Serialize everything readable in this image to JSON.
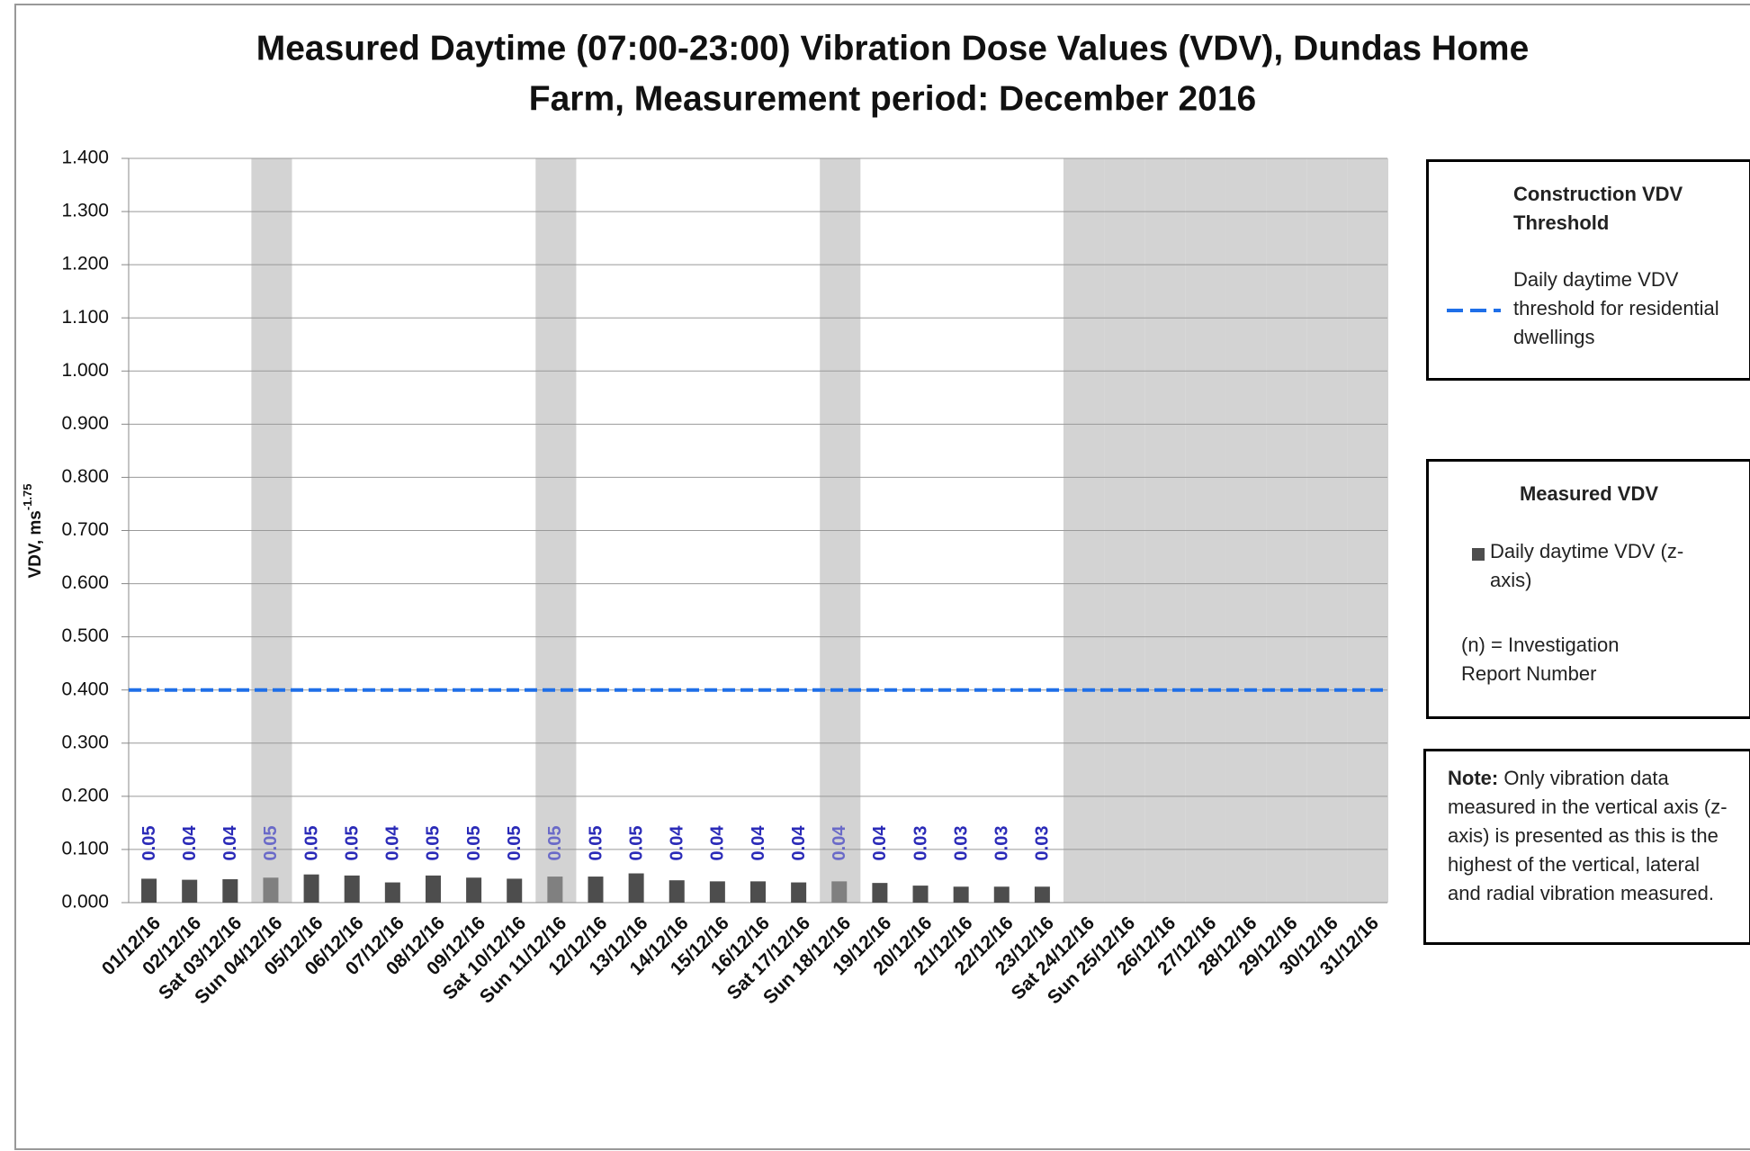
{
  "chart_data": {
    "type": "bar",
    "title_line1": "Measured Daytime (07:00-23:00) Vibration Dose Values (VDV), Dundas Home",
    "title_line2": "Farm, Measurement period: December 2016",
    "y_label": "VDV, ms",
    "y_label_sup": "-1.75",
    "categories": [
      "01/12/16",
      "02/12/16",
      "Sat 03/12/16",
      "Sun 04/12/16",
      "05/12/16",
      "06/12/16",
      "07/12/16",
      "08/12/16",
      "09/12/16",
      "Sat 10/12/16",
      "Sun 11/12/16",
      "12/12/16",
      "13/12/16",
      "14/12/16",
      "15/12/16",
      "16/12/16",
      "Sat 17/12/16",
      "Sun 18/12/16",
      "19/12/16",
      "20/12/16",
      "21/12/16",
      "22/12/16",
      "23/12/16",
      "Sat 24/12/16",
      "Sun 25/12/16",
      "26/12/16",
      "27/12/16",
      "28/12/16",
      "29/12/16",
      "30/12/16",
      "31/12/16"
    ],
    "series": [
      {
        "name": "Daily daytime VDV (z-axis)",
        "type": "bar",
        "color": "#4d4d4d",
        "label_color": "#2b2bb8",
        "values": [
          0.045,
          0.043,
          0.044,
          0.047,
          0.053,
          0.051,
          0.038,
          0.051,
          0.047,
          0.045,
          0.049,
          0.049,
          0.055,
          0.042,
          0.04,
          0.04,
          0.038,
          0.04,
          0.037,
          0.032,
          0.03,
          0.03,
          0.03,
          null,
          null,
          null,
          null,
          null,
          null,
          null,
          null
        ],
        "value_labels": [
          "0.05",
          "0.04",
          "0.04",
          "0.05",
          "0.05",
          "0.05",
          "0.04",
          "0.05",
          "0.05",
          "0.05",
          "0.05",
          "0.05",
          "0.05",
          "0.04",
          "0.04",
          "0.04",
          "0.04",
          "0.04",
          "0.04",
          "0.03",
          "0.03",
          "0.03",
          "0.03",
          null,
          null,
          null,
          null,
          null,
          null,
          null,
          null
        ]
      },
      {
        "name": "Daily daytime VDV threshold for residential dwellings",
        "type": "line",
        "color": "#1f6fe8",
        "dashed": true,
        "values": [
          0.4,
          0.4,
          0.4,
          0.4,
          0.4,
          0.4,
          0.4,
          0.4,
          0.4,
          0.4,
          0.4,
          0.4,
          0.4,
          0.4,
          0.4,
          0.4,
          0.4,
          0.4,
          0.4,
          0.4,
          0.4,
          0.4,
          0.4,
          0.4,
          0.4,
          0.4,
          0.4,
          0.4,
          0.4,
          0.4,
          0.4
        ]
      }
    ],
    "shaded_categories": [
      3,
      10,
      17,
      23,
      24,
      25,
      26,
      27,
      28,
      29,
      30
    ],
    "shade_color": "#d3d3d3",
    "shaded_bar_color": "#808080",
    "shaded_label_color": "#6a6ac8",
    "ylim": [
      0,
      1.4
    ],
    "yticks": [
      {
        "value": 0,
        "label": "0.000"
      },
      {
        "value": 0.1,
        "label": "0.100"
      },
      {
        "value": 0.2,
        "label": "0.200"
      },
      {
        "value": 0.3,
        "label": "0.300"
      },
      {
        "value": 0.4,
        "label": "0.400"
      },
      {
        "value": 0.5,
        "label": "0.500"
      },
      {
        "value": 0.6,
        "label": "0.600"
      },
      {
        "value": 0.7,
        "label": "0.700"
      },
      {
        "value": 0.8,
        "label": "0.800"
      },
      {
        "value": 0.9,
        "label": "0.900"
      },
      {
        "value": 1.0,
        "label": "1.000"
      },
      {
        "value": 1.1,
        "label": "1.100"
      },
      {
        "value": 1.2,
        "label": "1.200"
      },
      {
        "value": 1.3,
        "label": "1.300"
      },
      {
        "value": 1.4,
        "label": "1.400"
      }
    ],
    "grid": true,
    "legend_threshold_title": "Construction VDV Threshold",
    "legend_measured_title": "Measured VDV",
    "legend_note_n": "(n) = Investigation Report Number",
    "note_label": "Note:",
    "note_text": "Only vibration data measured in the vertical axis (z-axis) is presented as this is the highest of the vertical, lateral and radial vibration measured."
  }
}
